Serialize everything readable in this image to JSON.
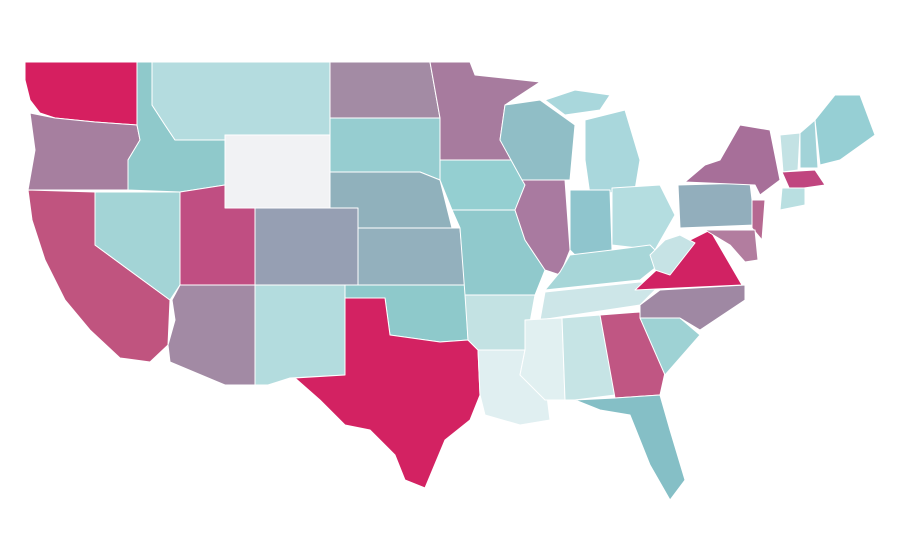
{
  "map": {
    "regions": [
      {
        "color": "#d61f60"
      },
      {
        "color": "#a67f9f"
      },
      {
        "color": "#c0547f"
      },
      {
        "color": "#a3d4d6"
      },
      {
        "color": "#8fc9cb"
      },
      {
        "color": "#b4dcdf"
      },
      {
        "color": "#f1f2f4"
      },
      {
        "color": "#c04e82"
      },
      {
        "color": "#969fb3"
      },
      {
        "color": "#a28aa4"
      },
      {
        "color": "#b3dcde"
      },
      {
        "color": "#a38ba4"
      },
      {
        "color": "#96cdd0"
      },
      {
        "color": "#90b1bc"
      },
      {
        "color": "#93b0bd"
      },
      {
        "color": "#8ec9cb"
      },
      {
        "color": "#d32262"
      },
      {
        "color": "#a77b9e"
      },
      {
        "color": "#94cfd1"
      },
      {
        "color": "#90c9cc"
      },
      {
        "color": "#c3e2e3"
      },
      {
        "color": "#e0eff1"
      },
      {
        "color": "#90bec6"
      },
      {
        "color": "#a97aa0"
      },
      {
        "color": "#a9d7dc"
      },
      {
        "color": "#8fc5cd"
      },
      {
        "color": "#b4dde0"
      },
      {
        "color": "#a7d6d8"
      },
      {
        "color": "#cde6e8"
      },
      {
        "color": "#e1f0f1"
      },
      {
        "color": "#c6e4e5"
      },
      {
        "color": "#c05683"
      },
      {
        "color": "#85bfc6"
      },
      {
        "color": "#9ed2d4"
      },
      {
        "color": "#9f88a3"
      },
      {
        "color": "#d12263"
      },
      {
        "color": "#c6e3e5"
      },
      {
        "color": "#92aebc"
      },
      {
        "color": "#a76f99"
      },
      {
        "color": "#b66991"
      },
      {
        "color": "#b27d9f"
      },
      {
        "color": "#c3e2e4"
      },
      {
        "color": "#a2d3d8"
      },
      {
        "color": "#96cfd4"
      },
      {
        "color": "#c0457f"
      },
      {
        "color": "#b9dfe1"
      },
      {
        "color": "#a9d7dc"
      }
    ]
  }
}
